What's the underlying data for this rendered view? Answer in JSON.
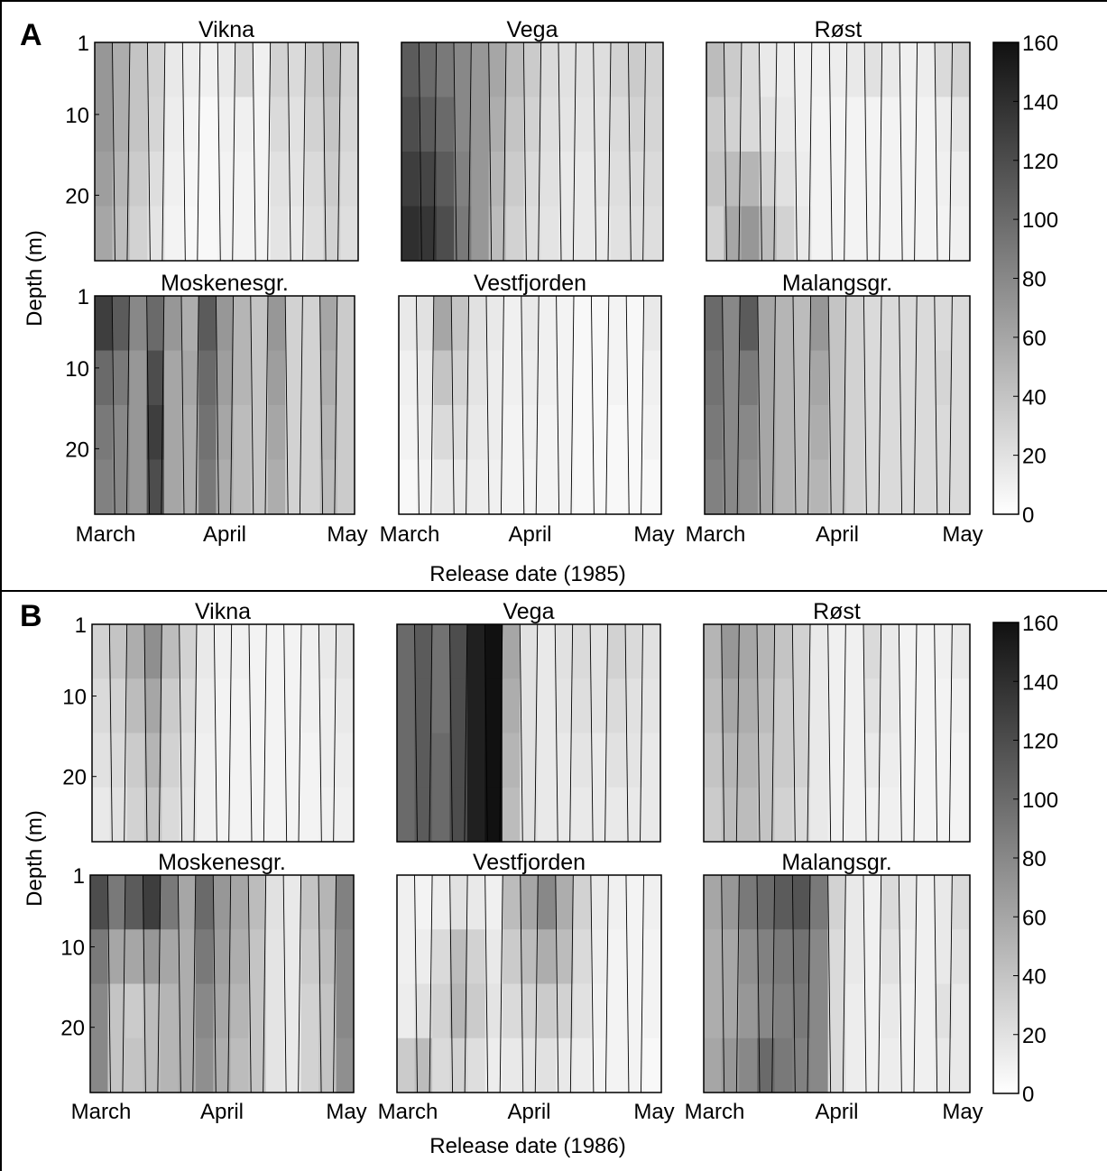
{
  "chart_data": [
    {
      "type": "heatmap",
      "panel_label": "A",
      "xlabel": "Release date (1985)",
      "ylabel": "Depth (m)",
      "x_tick_labels": [
        "March",
        "April",
        "May"
      ],
      "y_tick_labels": [
        "1",
        "10",
        "20"
      ],
      "ylim": [
        1,
        28
      ],
      "colorbar": {
        "min": 0,
        "max": 160,
        "ticks": [
          "0",
          "20",
          "40",
          "60",
          "80",
          "100",
          "120",
          "140",
          "160"
        ]
      },
      "subplots": [
        {
          "title": "Vikna",
          "values": [
            [
              70,
              55,
              40,
              30,
              15,
              12,
              10,
              15,
              25,
              10,
              30,
              25,
              35,
              45,
              30
            ],
            [
              70,
              55,
              40,
              28,
              12,
              8,
              5,
              10,
              10,
              8,
              25,
              20,
              30,
              40,
              28
            ],
            [
              65,
              50,
              35,
              22,
              10,
              6,
              5,
              8,
              8,
              8,
              20,
              18,
              25,
              35,
              25
            ],
            [
              60,
              45,
              30,
              18,
              8,
              5,
              5,
              8,
              8,
              8,
              18,
              15,
              22,
              30,
              22
            ]
          ]
        },
        {
          "title": "Vega",
          "values": [
            [
              110,
              100,
              90,
              80,
              70,
              60,
              45,
              35,
              25,
              20,
              20,
              22,
              30,
              35,
              30
            ],
            [
              120,
              110,
              100,
              80,
              70,
              55,
              40,
              30,
              22,
              18,
              18,
              20,
              25,
              30,
              28
            ],
            [
              130,
              125,
              110,
              85,
              70,
              50,
              35,
              25,
              20,
              15,
              15,
              18,
              22,
              25,
              25
            ],
            [
              140,
              135,
              120,
              90,
              70,
              45,
              30,
              22,
              18,
              15,
              15,
              15,
              20,
              22,
              22
            ]
          ]
        },
        {
          "title": "Røst",
          "values": [
            [
              45,
              35,
              25,
              15,
              12,
              10,
              10,
              12,
              15,
              20,
              15,
              10,
              12,
              25,
              30
            ],
            [
              35,
              30,
              25,
              20,
              15,
              10,
              8,
              8,
              8,
              8,
              8,
              8,
              8,
              12,
              18
            ],
            [
              40,
              45,
              50,
              30,
              20,
              12,
              8,
              8,
              8,
              8,
              8,
              8,
              8,
              10,
              12
            ],
            [
              30,
              60,
              70,
              45,
              30,
              15,
              8,
              8,
              8,
              8,
              8,
              8,
              8,
              8,
              10
            ]
          ]
        },
        {
          "title": "Moskenesgr.",
          "values": [
            [
              130,
              110,
              80,
              100,
              70,
              55,
              110,
              70,
              50,
              40,
              70,
              30,
              30,
              60,
              35
            ],
            [
              100,
              90,
              70,
              120,
              60,
              60,
              100,
              65,
              50,
              40,
              65,
              30,
              30,
              55,
              35
            ],
            [
              90,
              80,
              70,
              130,
              60,
              55,
              95,
              60,
              45,
              40,
              60,
              30,
              30,
              50,
              35
            ],
            [
              85,
              80,
              70,
              120,
              60,
              55,
              90,
              55,
              45,
              40,
              55,
              30,
              30,
              45,
              35
            ]
          ]
        },
        {
          "title": "Vestfjorden",
          "values": [
            [
              15,
              20,
              60,
              40,
              20,
              15,
              10,
              15,
              10,
              8,
              5,
              5,
              8,
              5,
              15
            ],
            [
              10,
              15,
              40,
              30,
              18,
              12,
              10,
              12,
              10,
              8,
              5,
              5,
              8,
              5,
              10
            ],
            [
              8,
              12,
              25,
              22,
              15,
              12,
              8,
              10,
              8,
              8,
              5,
              5,
              5,
              5,
              8
            ],
            [
              5,
              8,
              15,
              15,
              12,
              10,
              8,
              8,
              8,
              8,
              5,
              5,
              5,
              5,
              5
            ]
          ]
        },
        {
          "title": "Malangsgr.",
          "values": [
            [
              100,
              80,
              110,
              60,
              50,
              45,
              70,
              40,
              30,
              25,
              25,
              25,
              25,
              25,
              25
            ],
            [
              95,
              80,
              90,
              60,
              50,
              45,
              60,
              40,
              30,
              25,
              25,
              25,
              25,
              28,
              25
            ],
            [
              90,
              80,
              80,
              60,
              50,
              45,
              55,
              40,
              30,
              25,
              25,
              25,
              25,
              25,
              25
            ],
            [
              85,
              80,
              75,
              60,
              50,
              45,
              50,
              40,
              30,
              25,
              25,
              25,
              25,
              25,
              25
            ]
          ]
        }
      ]
    },
    {
      "type": "heatmap",
      "panel_label": "B",
      "xlabel": "Release date (1986)",
      "ylabel": "Depth (m)",
      "x_tick_labels": [
        "March",
        "April",
        "May"
      ],
      "y_tick_labels": [
        "1",
        "10",
        "20"
      ],
      "ylim": [
        1,
        28
      ],
      "colorbar": {
        "min": 0,
        "max": 160,
        "ticks": [
          "0",
          "20",
          "40",
          "60",
          "80",
          "100",
          "120",
          "140",
          "160"
        ]
      },
      "subplots": [
        {
          "title": "Vikna",
          "values": [
            [
              30,
              40,
              55,
              75,
              45,
              30,
              15,
              10,
              10,
              8,
              8,
              8,
              10,
              15,
              18
            ],
            [
              25,
              30,
              45,
              60,
              35,
              25,
              12,
              8,
              8,
              8,
              8,
              8,
              10,
              12,
              15
            ],
            [
              20,
              25,
              35,
              50,
              30,
              20,
              10,
              8,
              8,
              8,
              8,
              8,
              8,
              12,
              12
            ],
            [
              15,
              20,
              30,
              40,
              25,
              18,
              10,
              8,
              8,
              8,
              8,
              8,
              8,
              10,
              10
            ]
          ]
        },
        {
          "title": "Vega",
          "values": [
            [
              100,
              110,
              95,
              120,
              150,
              160,
              60,
              20,
              15,
              20,
              25,
              20,
              30,
              25,
              20
            ],
            [
              100,
              110,
              95,
              120,
              150,
              160,
              55,
              20,
              15,
              18,
              22,
              20,
              25,
              20,
              18
            ],
            [
              100,
              110,
              100,
              120,
              150,
              160,
              50,
              20,
              15,
              15,
              18,
              15,
              20,
              18,
              15
            ],
            [
              100,
              110,
              100,
              120,
              150,
              160,
              45,
              20,
              15,
              15,
              15,
              15,
              15,
              15,
              15
            ]
          ]
        },
        {
          "title": "Røst",
          "values": [
            [
              50,
              70,
              60,
              50,
              40,
              30,
              15,
              10,
              10,
              25,
              15,
              8,
              8,
              10,
              15
            ],
            [
              45,
              60,
              55,
              45,
              35,
              30,
              15,
              10,
              10,
              20,
              15,
              8,
              8,
              8,
              10
            ],
            [
              40,
              50,
              50,
              40,
              35,
              30,
              15,
              10,
              10,
              15,
              12,
              8,
              8,
              8,
              8
            ],
            [
              35,
              45,
              45,
              40,
              30,
              25,
              15,
              10,
              10,
              10,
              10,
              8,
              8,
              8,
              8
            ]
          ]
        },
        {
          "title": "Moskenesgr.",
          "values": [
            [
              120,
              90,
              110,
              130,
              90,
              60,
              100,
              70,
              60,
              45,
              20,
              15,
              40,
              50,
              85
            ],
            [
              90,
              60,
              60,
              70,
              60,
              55,
              90,
              65,
              55,
              40,
              18,
              15,
              35,
              45,
              80
            ],
            [
              80,
              40,
              35,
              45,
              50,
              55,
              80,
              60,
              50,
              40,
              18,
              15,
              30,
              40,
              80
            ],
            [
              80,
              40,
              40,
              45,
              50,
              55,
              75,
              55,
              45,
              40,
              18,
              15,
              30,
              40,
              75
            ]
          ]
        },
        {
          "title": "Vestfjorden",
          "values": [
            [
              10,
              8,
              12,
              20,
              15,
              10,
              45,
              60,
              80,
              55,
              30,
              15,
              10,
              8,
              10
            ],
            [
              10,
              12,
              25,
              45,
              30,
              15,
              35,
              45,
              55,
              45,
              25,
              12,
              8,
              8,
              8
            ],
            [
              12,
              20,
              30,
              50,
              35,
              18,
              25,
              30,
              35,
              30,
              20,
              10,
              8,
              8,
              8
            ],
            [
              35,
              45,
              25,
              30,
              22,
              12,
              15,
              18,
              20,
              15,
              12,
              8,
              8,
              8,
              5
            ]
          ]
        },
        {
          "title": "Malangsgr.",
          "values": [
            [
              60,
              70,
              90,
              100,
              110,
              115,
              90,
              30,
              15,
              10,
              25,
              15,
              10,
              15,
              25
            ],
            [
              55,
              60,
              75,
              85,
              90,
              95,
              80,
              25,
              15,
              10,
              20,
              12,
              10,
              15,
              20
            ],
            [
              55,
              60,
              70,
              80,
              85,
              90,
              80,
              25,
              12,
              10,
              15,
              10,
              10,
              20,
              15
            ],
            [
              60,
              70,
              80,
              100,
              90,
              85,
              80,
              25,
              12,
              10,
              12,
              10,
              10,
              15,
              15
            ]
          ]
        }
      ]
    }
  ]
}
